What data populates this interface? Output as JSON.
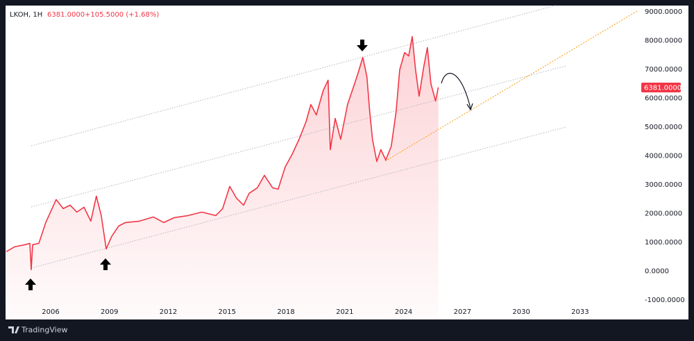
{
  "chart_data": {
    "type": "line",
    "title": "LKOH, 1H",
    "price_label": "6381.0000",
    "change_label": "+105.5000 (+1.68%)",
    "brand": "TradingView",
    "x": [
      2003.74,
      2004.16,
      2004.69,
      2004.94,
      2005.01,
      2005.08,
      2005.4,
      2005.75,
      2006.28,
      2006.64,
      2006.99,
      2007.34,
      2007.7,
      2008.05,
      2008.33,
      2008.58,
      2008.83,
      2009.11,
      2009.47,
      2009.82,
      2010.53,
      2011.24,
      2011.77,
      2012.3,
      2013.0,
      2013.71,
      2014.42,
      2014.77,
      2015.13,
      2015.48,
      2015.84,
      2016.12,
      2016.54,
      2016.9,
      2017.32,
      2017.6,
      2017.96,
      2018.31,
      2018.67,
      2019.02,
      2019.27,
      2019.55,
      2019.9,
      2020.15,
      2020.26,
      2020.51,
      2020.79,
      2021.14,
      2021.5,
      2021.67,
      2021.92,
      2022.13,
      2022.27,
      2022.41,
      2022.63,
      2022.84,
      2023.09,
      2023.37,
      2023.62,
      2023.8,
      2024.05,
      2024.26,
      2024.44,
      2024.61,
      2024.79,
      2025.03,
      2025.21,
      2025.39,
      2025.63,
      2025.77
    ],
    "series": [
      {
        "name": "LKOH",
        "color": "#f23645",
        "values": [
          675,
          843,
          916,
          964,
          48,
          916,
          964,
          1687,
          2482,
          2169,
          2289,
          2048,
          2217,
          1735,
          2602,
          1928,
          771,
          1205,
          1566,
          1687,
          1735,
          1880,
          1687,
          1855,
          1928,
          2048,
          1928,
          2169,
          2940,
          2530,
          2289,
          2699,
          2892,
          3325,
          2892,
          2843,
          3614,
          4048,
          4578,
          5181,
          5783,
          5422,
          6265,
          6627,
          4217,
          5301,
          4578,
          5783,
          6506,
          6867,
          7422,
          6747,
          5542,
          4578,
          3807,
          4217,
          3855,
          4337,
          5542,
          6988,
          7590,
          7470,
          8145,
          6988,
          6072,
          7108,
          7759,
          6506,
          5904,
          6381
        ]
      }
    ],
    "xlim": [
      2003.7,
      2035.8
    ],
    "ylim": [
      -1680,
      9220
    ],
    "xticks": [
      2006,
      2009,
      2012,
      2015,
      2018,
      2021,
      2024,
      2027,
      2030,
      2033
    ],
    "yticks": [
      {
        "value": 9000,
        "label": "9000.0000"
      },
      {
        "value": 8000,
        "label": "8000.0000"
      },
      {
        "value": 7000,
        "label": "7000.0000"
      },
      {
        "value": 6000,
        "label": "6000.0000"
      },
      {
        "value": 5000,
        "label": "5000.0000"
      },
      {
        "value": 4000,
        "label": "4000.0000"
      },
      {
        "value": 3000,
        "label": "3000.0000"
      },
      {
        "value": 2000,
        "label": "2000.0000"
      },
      {
        "value": 1000,
        "label": "1000.0000"
      },
      {
        "value": 0,
        "label": "0.0000"
      },
      {
        "value": -1000,
        "label": "-1000.0000"
      }
    ],
    "grid": false
  }
}
